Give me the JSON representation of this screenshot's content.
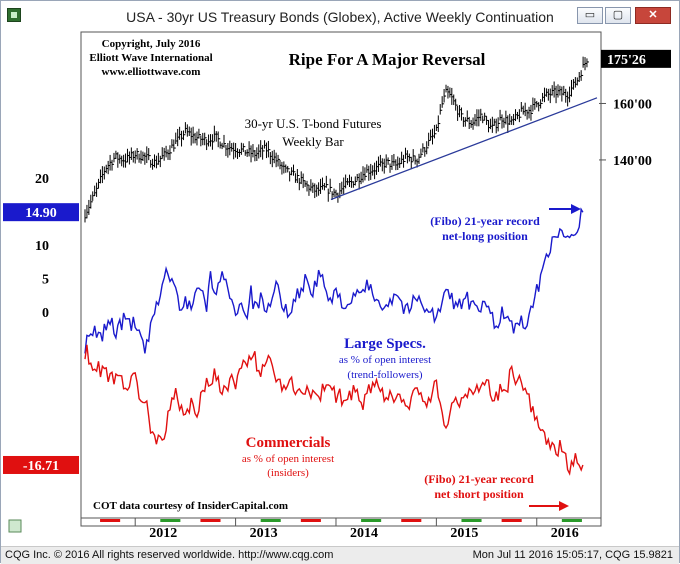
{
  "window": {
    "title": "USA - 30yr US Treasury Bonds (Globex), Active Weekly Continuation",
    "minimize_glyph": "▭",
    "restore_glyph": "▢",
    "close_glyph": "✕"
  },
  "footer": {
    "left": "CQG Inc. © 2016 All rights reserved worldwide. http://www.cqg.com",
    "right": "Mon Jul 11 2016 15:05:17, CQG 15.9821"
  },
  "annotations": {
    "copyright": [
      "Copyright, July 2016",
      "Elliott Wave International",
      "www.elliottwave.com"
    ],
    "headline": "Ripe For A Major Reversal",
    "price_label": [
      "30-yr U.S. T-bond Futures",
      "Weekly Bar"
    ],
    "record_long": [
      "(Fibo) 21-year record",
      "net-long position"
    ],
    "large_specs": [
      "Large Specs.",
      "as % of open interest",
      "(trend-followers)"
    ],
    "commercials": [
      "Commercials",
      "as % of open interest",
      "(insiders)"
    ],
    "record_short": [
      "(Fibo) 21-year record",
      "net short position"
    ],
    "source": "COT data courtesy of InsiderCapital.com"
  },
  "colors": {
    "price": "#000000",
    "large_specs": "#1a1acc",
    "commercials": "#e01010",
    "trendline": "#2a3a9a",
    "price_badge_bg": "#000000",
    "specs_badge_bg": "#1a1acc",
    "comm_badge_bg": "#e01010"
  },
  "chart_data": [
    {
      "type": "bar",
      "title": "Ripe For A Major Reversal",
      "series_name": "30-yr U.S. T-bond Futures Weekly Bar",
      "x_labels": [
        "2012",
        "2013",
        "2014",
        "2015",
        "2016"
      ],
      "y_ticks": [
        "160'00",
        "140'00"
      ],
      "last_value": "175'26",
      "y_range": [
        112,
        180
      ],
      "weekly_close_points": [
        [
          2011.5,
          121
        ],
        [
          2011.6,
          128
        ],
        [
          2011.7,
          137
        ],
        [
          2011.8,
          141
        ],
        [
          2011.9,
          140
        ],
        [
          2012.0,
          142
        ],
        [
          2012.1,
          141
        ],
        [
          2012.2,
          139
        ],
        [
          2012.3,
          142
        ],
        [
          2012.4,
          146
        ],
        [
          2012.5,
          150
        ],
        [
          2012.6,
          148
        ],
        [
          2012.7,
          147
        ],
        [
          2012.8,
          148
        ],
        [
          2012.9,
          145
        ],
        [
          2013.0,
          144
        ],
        [
          2013.1,
          143
        ],
        [
          2013.2,
          142
        ],
        [
          2013.3,
          144
        ],
        [
          2013.4,
          140
        ],
        [
          2013.5,
          136
        ],
        [
          2013.6,
          134
        ],
        [
          2013.7,
          131
        ],
        [
          2013.8,
          129
        ],
        [
          2013.9,
          130
        ],
        [
          2014.0,
          128
        ],
        [
          2014.1,
          131
        ],
        [
          2014.2,
          133
        ],
        [
          2014.3,
          136
        ],
        [
          2014.4,
          137
        ],
        [
          2014.5,
          139
        ],
        [
          2014.6,
          138
        ],
        [
          2014.7,
          141
        ],
        [
          2014.8,
          140
        ],
        [
          2014.9,
          145
        ],
        [
          2015.0,
          150
        ],
        [
          2015.05,
          159
        ],
        [
          2015.1,
          164
        ],
        [
          2015.15,
          162
        ],
        [
          2015.25,
          155
        ],
        [
          2015.35,
          153
        ],
        [
          2015.45,
          156
        ],
        [
          2015.55,
          151
        ],
        [
          2015.65,
          155
        ],
        [
          2015.75,
          153
        ],
        [
          2015.85,
          157
        ],
        [
          2015.95,
          158
        ],
        [
          2016.0,
          160
        ],
        [
          2016.1,
          163
        ],
        [
          2016.2,
          164
        ],
        [
          2016.3,
          163
        ],
        [
          2016.4,
          168
        ],
        [
          2016.45,
          172
        ],
        [
          2016.5,
          175.8
        ]
      ],
      "trendline": [
        [
          2013.95,
          126
        ],
        [
          2016.6,
          162
        ]
      ]
    },
    {
      "type": "line",
      "y_ticks": [
        20,
        14.9,
        10,
        5,
        0
      ],
      "series": [
        {
          "name": "Large Specs.",
          "last_value": "14.90",
          "points": [
            [
              2011.5,
              -5
            ],
            [
              2011.6,
              -3
            ],
            [
              2011.65,
              -4
            ],
            [
              2011.75,
              -1
            ],
            [
              2011.8,
              -3
            ],
            [
              2011.9,
              -1
            ],
            [
              2012.0,
              -2
            ],
            [
              2012.05,
              -4
            ],
            [
              2012.1,
              -6
            ],
            [
              2012.15,
              -3
            ],
            [
              2012.25,
              3
            ],
            [
              2012.3,
              6
            ],
            [
              2012.4,
              4
            ],
            [
              2012.45,
              -1
            ],
            [
              2012.5,
              2
            ],
            [
              2012.55,
              1
            ],
            [
              2012.65,
              4
            ],
            [
              2012.7,
              0
            ],
            [
              2012.75,
              5
            ],
            [
              2012.8,
              3
            ],
            [
              2012.9,
              6
            ],
            [
              2012.95,
              2
            ],
            [
              2013.0,
              0
            ],
            [
              2013.05,
              2
            ],
            [
              2013.1,
              -1
            ],
            [
              2013.15,
              3
            ],
            [
              2013.2,
              0
            ],
            [
              2013.25,
              2
            ],
            [
              2013.3,
              -1
            ],
            [
              2013.35,
              1
            ],
            [
              2013.4,
              4
            ],
            [
              2013.5,
              0
            ],
            [
              2013.6,
              2
            ],
            [
              2013.7,
              5
            ],
            [
              2013.75,
              3
            ],
            [
              2013.8,
              4
            ],
            [
              2013.85,
              6
            ],
            [
              2013.9,
              3
            ],
            [
              2013.95,
              1
            ],
            [
              2014.0,
              3
            ],
            [
              2014.1,
              1
            ],
            [
              2014.2,
              2
            ],
            [
              2014.3,
              4
            ],
            [
              2014.4,
              2
            ],
            [
              2014.5,
              1
            ],
            [
              2014.6,
              3
            ],
            [
              2014.7,
              0
            ],
            [
              2014.8,
              2
            ],
            [
              2014.9,
              1
            ],
            [
              2015.0,
              -1
            ],
            [
              2015.05,
              1
            ],
            [
              2015.1,
              3
            ],
            [
              2015.2,
              1
            ],
            [
              2015.3,
              2
            ],
            [
              2015.4,
              0
            ],
            [
              2015.5,
              1
            ],
            [
              2015.6,
              -2
            ],
            [
              2015.65,
              0
            ],
            [
              2015.7,
              -1
            ],
            [
              2015.8,
              -3
            ],
            [
              2015.85,
              -1
            ],
            [
              2015.9,
              -2
            ],
            [
              2015.95,
              0
            ],
            [
              2016.0,
              3
            ],
            [
              2016.05,
              6
            ],
            [
              2016.1,
              8
            ],
            [
              2016.15,
              11
            ],
            [
              2016.2,
              12
            ],
            [
              2016.25,
              11
            ],
            [
              2016.3,
              12.5
            ],
            [
              2016.35,
              11.8
            ],
            [
              2016.42,
              13.5
            ],
            [
              2016.46,
              14.9
            ]
          ]
        },
        {
          "name": "Commercials",
          "last_value": "-16.71",
          "points": [
            [
              2011.5,
              -1
            ],
            [
              2011.55,
              -2
            ],
            [
              2011.6,
              -4
            ],
            [
              2011.7,
              -3
            ],
            [
              2011.75,
              -5
            ],
            [
              2011.85,
              -4
            ],
            [
              2011.9,
              -6
            ],
            [
              2012.0,
              -5
            ],
            [
              2012.05,
              -7
            ],
            [
              2012.1,
              -8
            ],
            [
              2012.15,
              -11
            ],
            [
              2012.2,
              -13
            ],
            [
              2012.3,
              -12
            ],
            [
              2012.35,
              -9
            ],
            [
              2012.4,
              -7
            ],
            [
              2012.5,
              -10
            ],
            [
              2012.55,
              -8
            ],
            [
              2012.6,
              -10
            ],
            [
              2012.7,
              -6
            ],
            [
              2012.8,
              -4
            ],
            [
              2012.85,
              -7
            ],
            [
              2012.95,
              -5
            ],
            [
              2013.0,
              -6
            ],
            [
              2013.05,
              -4
            ],
            [
              2013.15,
              -1
            ],
            [
              2013.25,
              -4
            ],
            [
              2013.3,
              -2
            ],
            [
              2013.4,
              -4
            ],
            [
              2013.45,
              -6
            ],
            [
              2013.55,
              -5
            ],
            [
              2013.6,
              -7
            ],
            [
              2013.7,
              -6
            ],
            [
              2013.8,
              -8
            ],
            [
              2013.9,
              -6
            ],
            [
              2014.0,
              -7
            ],
            [
              2014.1,
              -8
            ],
            [
              2014.2,
              -6
            ],
            [
              2014.25,
              -9
            ],
            [
              2014.3,
              -7
            ],
            [
              2014.4,
              -6
            ],
            [
              2014.5,
              -8
            ],
            [
              2014.6,
              -7
            ],
            [
              2014.7,
              -9
            ],
            [
              2014.8,
              -7
            ],
            [
              2014.9,
              -8
            ],
            [
              2015.0,
              -6
            ],
            [
              2015.05,
              -9
            ],
            [
              2015.1,
              -11
            ],
            [
              2015.2,
              -8
            ],
            [
              2015.3,
              -7
            ],
            [
              2015.4,
              -6
            ],
            [
              2015.5,
              -5
            ],
            [
              2015.55,
              -8
            ],
            [
              2015.6,
              -7
            ],
            [
              2015.7,
              -6
            ],
            [
              2015.75,
              -4
            ],
            [
              2015.8,
              -6
            ],
            [
              2015.85,
              -5
            ],
            [
              2015.9,
              -7
            ],
            [
              2015.95,
              -9
            ],
            [
              2016.0,
              -11
            ],
            [
              2016.05,
              -12
            ],
            [
              2016.1,
              -13.5
            ],
            [
              2016.2,
              -15
            ],
            [
              2016.25,
              -14
            ],
            [
              2016.3,
              -16
            ],
            [
              2016.35,
              -17.5
            ],
            [
              2016.4,
              -15.5
            ],
            [
              2016.46,
              -16.71
            ]
          ]
        }
      ]
    }
  ]
}
